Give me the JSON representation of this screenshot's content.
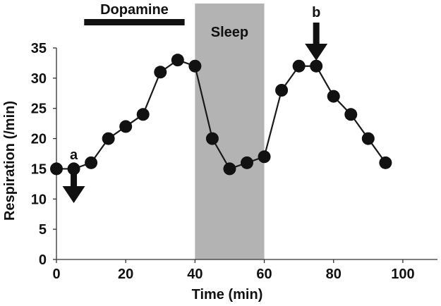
{
  "chart_data": {
    "type": "line",
    "title": "",
    "xlabel": "Time (min)",
    "ylabel": "Respiration (/min)",
    "xlim": [
      0,
      110
    ],
    "ylim": [
      0,
      35
    ],
    "x_ticks": [
      0,
      20,
      40,
      60,
      80,
      100
    ],
    "y_ticks": [
      0,
      5,
      10,
      15,
      20,
      25,
      30,
      35
    ],
    "grid": false,
    "legend": "none",
    "series": [
      {
        "x": [
          0,
          5,
          10,
          15,
          20,
          25,
          30,
          35,
          40,
          45,
          50,
          55,
          60,
          65,
          70,
          75,
          80,
          85,
          90,
          95
        ],
        "values": [
          15,
          15,
          16,
          20,
          22,
          24,
          31,
          33,
          32,
          20,
          15,
          16,
          17,
          28,
          32,
          32,
          27,
          24,
          20,
          16
        ]
      }
    ],
    "shaded_region": {
      "x_start": 40,
      "x_end": 60,
      "label": "Sleep",
      "color": "#b3b3b3"
    },
    "bar_annotation": {
      "x_start": 8,
      "x_end": 37,
      "label": "Dopamine"
    },
    "arrows": [
      {
        "label": "a",
        "x": 5
      },
      {
        "label": "b",
        "x": 75
      }
    ],
    "colors": {
      "line": "#1a1a1a",
      "marker": "#111111",
      "axis": "#333333",
      "text": "#111111"
    }
  }
}
